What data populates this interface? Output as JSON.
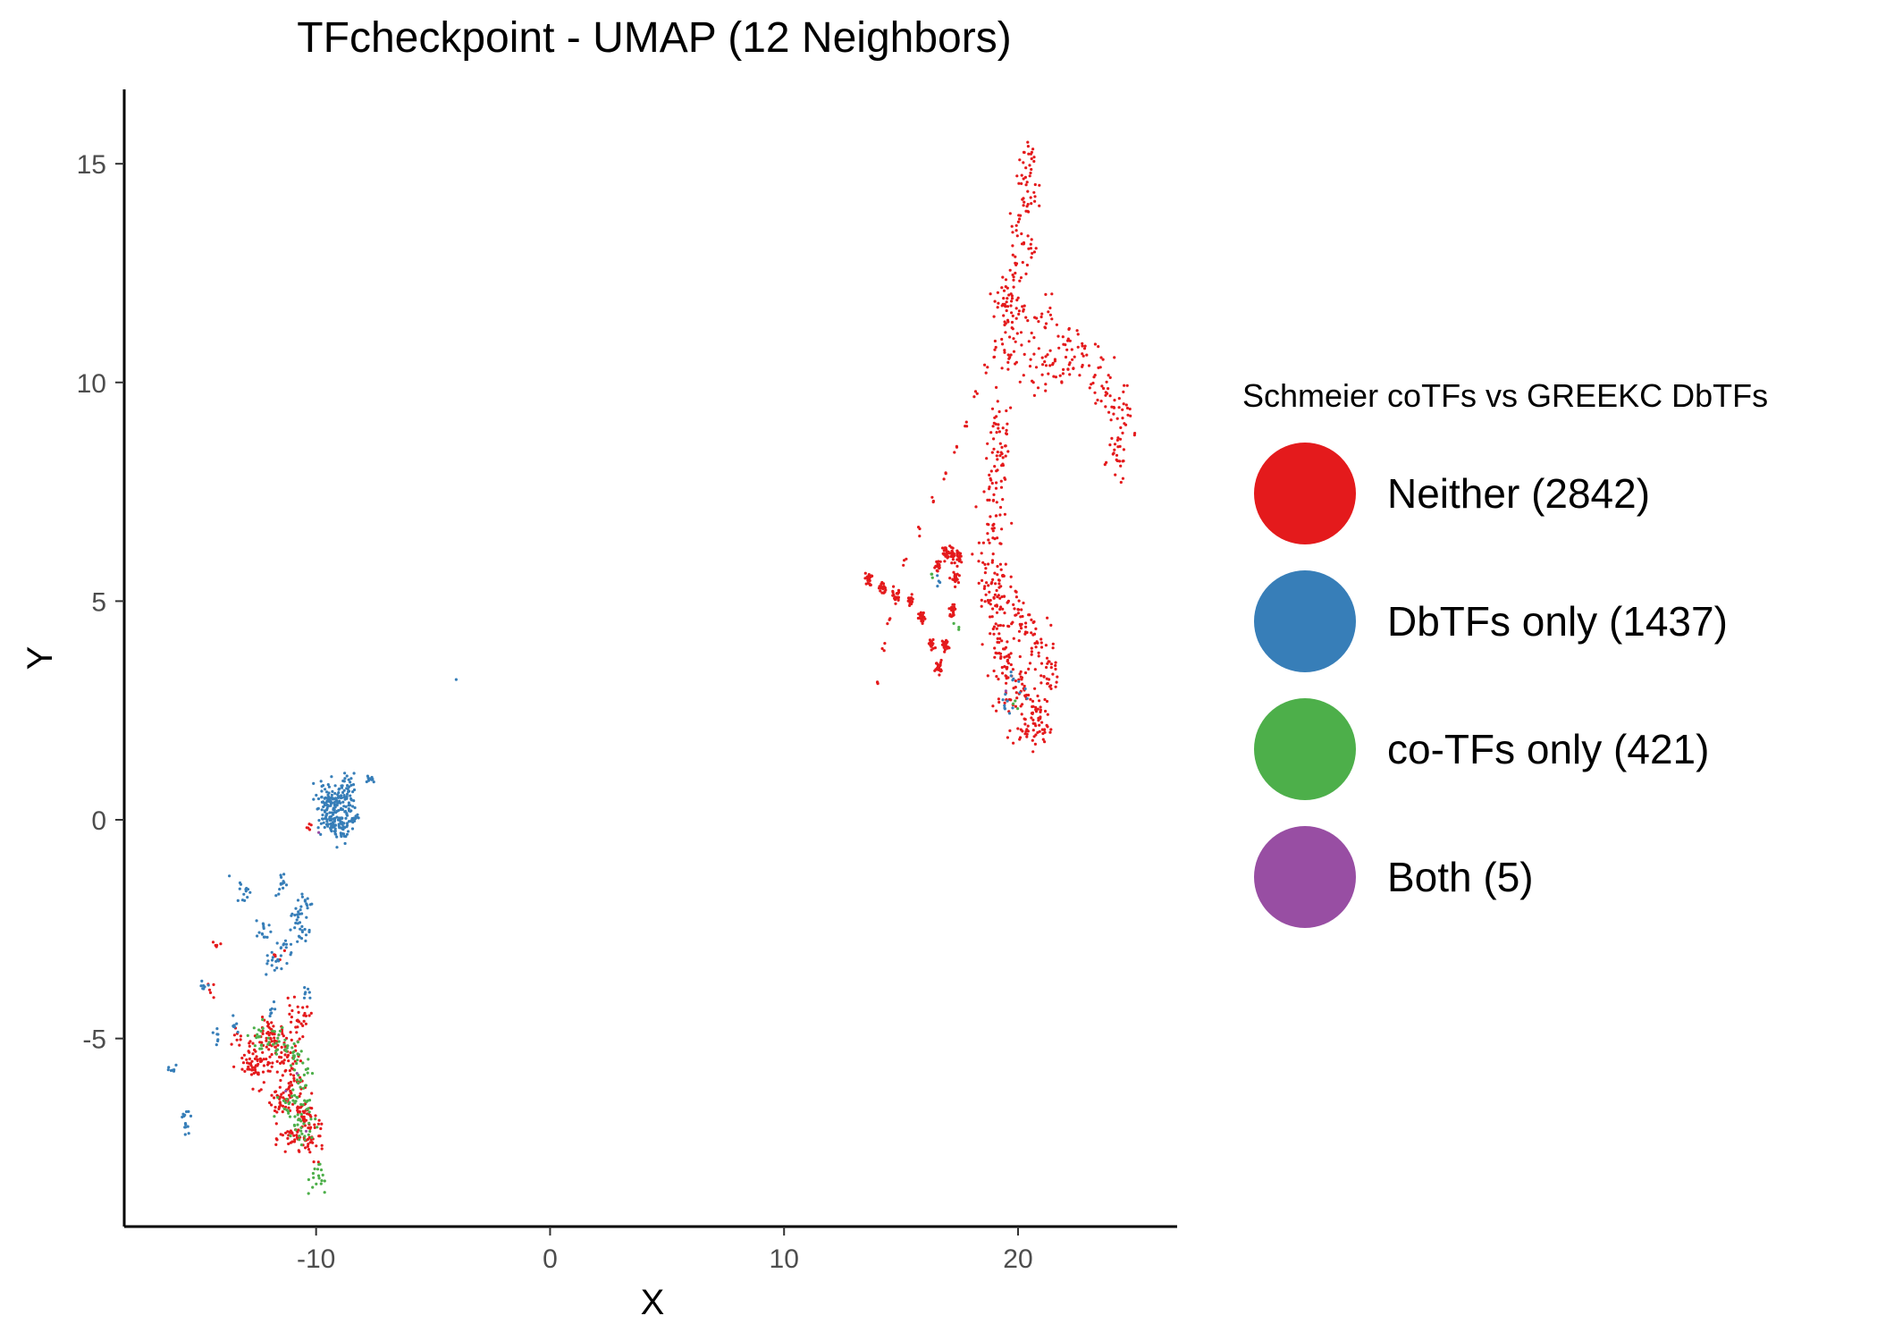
{
  "chart_data": {
    "type": "scatter",
    "title": "TFcheckpoint - UMAP (12 Neighbors)",
    "xlabel": "X",
    "ylabel": "Y",
    "xlim": [
      -18.2,
      26.8
    ],
    "ylim": [
      -9.3,
      16.7
    ],
    "xticks": [
      -10,
      0,
      10,
      20
    ],
    "xtick_labels": [
      "-10",
      "0",
      "10",
      "20"
    ],
    "yticks": [
      -5,
      0,
      5,
      10,
      15
    ],
    "ytick_labels": [
      "-5",
      "0",
      "5",
      "10",
      "15"
    ],
    "grid": false,
    "legend": {
      "position": "right",
      "title": "Schmeier coTFs vs GREEKC DbTFs"
    },
    "series": [
      {
        "name": "Neither (2842)",
        "color": "#e41a1c",
        "clusters": [
          {
            "points": [
              [
                20.5,
                15.2
              ],
              [
                20.3,
                14.6
              ],
              [
                20.6,
                14.2
              ],
              [
                20.1,
                13.6
              ],
              [
                20.4,
                13.0
              ],
              [
                19.9,
                12.6
              ],
              [
                19.5,
                12.0
              ],
              [
                19.7,
                11.3
              ],
              [
                19.3,
                11.8
              ]
            ],
            "spread": [
              0.35,
              0.35
            ],
            "n": 130
          },
          {
            "points": [
              [
                19.9,
                11.8
              ],
              [
                19.4,
                11.4
              ],
              [
                19.0,
                10.9
              ],
              [
                18.6,
                10.3
              ],
              [
                18.2,
                9.7
              ],
              [
                17.8,
                9.1
              ],
              [
                17.3,
                8.5
              ],
              [
                16.9,
                7.9
              ],
              [
                16.4,
                7.3
              ],
              [
                15.8,
                6.6
              ],
              [
                15.2,
                5.9
              ],
              [
                14.8,
                5.3
              ],
              [
                14.5,
                4.6
              ],
              [
                14.2,
                3.9
              ],
              [
                14.0,
                3.2
              ]
            ],
            "spread": [
              0.12,
              0.15
            ],
            "n": 45
          },
          {
            "points": [
              [
                20.2,
                11.5
              ],
              [
                21.2,
                11.4
              ],
              [
                22.2,
                11.0
              ],
              [
                22.8,
                10.6
              ],
              [
                23.5,
                10.1
              ],
              [
                24.0,
                9.7
              ],
              [
                24.4,
                9.3
              ],
              [
                24.5,
                8.8
              ],
              [
                24.2,
                8.2
              ],
              [
                20.5,
                10.5
              ],
              [
                21.3,
                10.2
              ],
              [
                22.0,
                10.3
              ],
              [
                19.6,
                10.6
              ]
            ],
            "spread": [
              0.5,
              0.45
            ],
            "n": 200
          },
          {
            "points": [
              [
                19.2,
                9.0
              ],
              [
                19.1,
                8.2
              ],
              [
                19.0,
                7.4
              ],
              [
                19.0,
                6.6
              ],
              [
                18.9,
                5.8
              ],
              [
                19.3,
                5.2
              ],
              [
                19.8,
                4.8
              ],
              [
                20.3,
                4.4
              ],
              [
                20.8,
                3.9
              ],
              [
                19.1,
                4.0
              ],
              [
                19.6,
                3.5
              ],
              [
                20.2,
                3.0
              ],
              [
                20.8,
                2.5
              ],
              [
                21.0,
                2.0
              ],
              [
                20.3,
                2.2
              ],
              [
                19.5,
                3.0
              ],
              [
                21.3,
                3.3
              ],
              [
                18.7,
                5.0
              ]
            ],
            "spread": [
              0.5,
              0.45
            ],
            "n": 420
          },
          {
            "points": [
              [
                13.6,
                5.5
              ],
              [
                14.2,
                5.3
              ],
              [
                14.8,
                5.1
              ],
              [
                15.4,
                5.0
              ],
              [
                15.9,
                4.6
              ],
              [
                16.3,
                4.0
              ],
              [
                16.6,
                3.5
              ],
              [
                16.9,
                4.0
              ],
              [
                17.2,
                4.8
              ],
              [
                17.3,
                5.5
              ],
              [
                17.2,
                6.1
              ],
              [
                16.9,
                6.1
              ],
              [
                16.6,
                5.8
              ],
              [
                17.5,
                6.0
              ]
            ],
            "spread": [
              0.12,
              0.12
            ],
            "n": 300
          },
          {
            "points": [
              [
                -11.8,
                -5.1
              ],
              [
                -11.2,
                -5.5
              ],
              [
                -12.4,
                -5.7
              ],
              [
                -11.0,
                -6.2
              ],
              [
                -10.5,
                -6.8
              ],
              [
                -10.2,
                -7.3
              ],
              [
                -11.0,
                -7.3
              ],
              [
                -11.6,
                -6.5
              ],
              [
                -12.0,
                -4.9
              ],
              [
                -10.8,
                -4.6
              ],
              [
                -12.8,
                -5.4
              ]
            ],
            "spread": [
              0.45,
              0.35
            ],
            "n": 360
          },
          {
            "points": [
              [
                -14.6,
                -3.9
              ],
              [
                -14.2,
                -2.8
              ],
              [
                -11.6,
                -3.1
              ],
              [
                -10.3,
                -0.1
              ],
              [
                -13.4,
                -4.9
              ]
            ],
            "spread": [
              0.2,
              0.15
            ],
            "n": 25
          }
        ]
      },
      {
        "name": "DbTFs only (1437)",
        "color": "#377eb8",
        "clusters": [
          {
            "points": [
              [
                -9.2,
                0.3
              ],
              [
                -9.5,
                0.0
              ],
              [
                -8.8,
                0.7
              ],
              [
                -9.6,
                0.5
              ],
              [
                -8.6,
                0.1
              ],
              [
                -9.0,
                -0.2
              ]
            ],
            "spread": [
              0.35,
              0.3
            ],
            "n": 260
          },
          {
            "points": [
              [
                -7.7,
                0.95
              ]
            ],
            "spread": [
              0.2,
              0.08
            ],
            "n": 12
          },
          {
            "points": [
              [
                -10.6,
                -2.6
              ],
              [
                -11.3,
                -2.9
              ],
              [
                -12.2,
                -2.6
              ],
              [
                -10.8,
                -2.2
              ],
              [
                -11.8,
                -3.3
              ],
              [
                -13.1,
                -1.6
              ],
              [
                -11.4,
                -1.5
              ],
              [
                -10.5,
                -1.9
              ]
            ],
            "spread": [
              0.3,
              0.25
            ],
            "n": 110
          },
          {
            "points": [
              [
                -15.5,
                -7.0
              ],
              [
                -15.6,
                -6.7
              ],
              [
                -16.2,
                -5.7
              ],
              [
                -14.8,
                -3.8
              ],
              [
                -13.5,
                -4.7
              ],
              [
                -14.2,
                -4.9
              ],
              [
                -11.9,
                -4.3
              ],
              [
                -10.4,
                -4.0
              ]
            ],
            "spread": [
              0.15,
              0.15
            ],
            "n": 55
          },
          {
            "points": [
              [
                19.4,
                2.8
              ],
              [
                19.7,
                3.2
              ],
              [
                20.2,
                2.9
              ],
              [
                19.6,
                2.5
              ],
              [
                16.5,
                5.5
              ]
            ],
            "spread": [
              0.2,
              0.2
            ],
            "n": 22
          },
          {
            "points": [
              [
                -4.0,
                3.2
              ]
            ],
            "spread": [
              0.03,
              0.03
            ],
            "n": 1
          }
        ]
      },
      {
        "name": "co-TFs only (421)",
        "color": "#4daf4a",
        "clusters": [
          {
            "points": [
              [
                -10.9,
                -5.4
              ],
              [
                -10.6,
                -5.8
              ],
              [
                -11.2,
                -6.5
              ],
              [
                -10.4,
                -6.8
              ],
              [
                -11.5,
                -5.1
              ],
              [
                -10.7,
                -7.0
              ],
              [
                -9.9,
                -8.2
              ],
              [
                -12.4,
                -5.0
              ]
            ],
            "spread": [
              0.35,
              0.35
            ],
            "n": 140
          },
          {
            "points": [
              [
                16.3,
                5.7
              ],
              [
                17.4,
                4.4
              ],
              [
                19.8,
                2.6
              ]
            ],
            "spread": [
              0.15,
              0.15
            ],
            "n": 8
          }
        ]
      },
      {
        "name": "Both (5)",
        "color": "#984ea3",
        "clusters": [
          {
            "points": [
              [
                -10.8,
                -5.8
              ],
              [
                -11.3,
                -6.2
              ],
              [
                -10.5,
                -7.1
              ],
              [
                -9.9,
                -0.3
              ],
              [
                19.5,
                2.9
              ]
            ],
            "spread": [
              0.05,
              0.05
            ],
            "n": 5
          }
        ]
      }
    ]
  }
}
